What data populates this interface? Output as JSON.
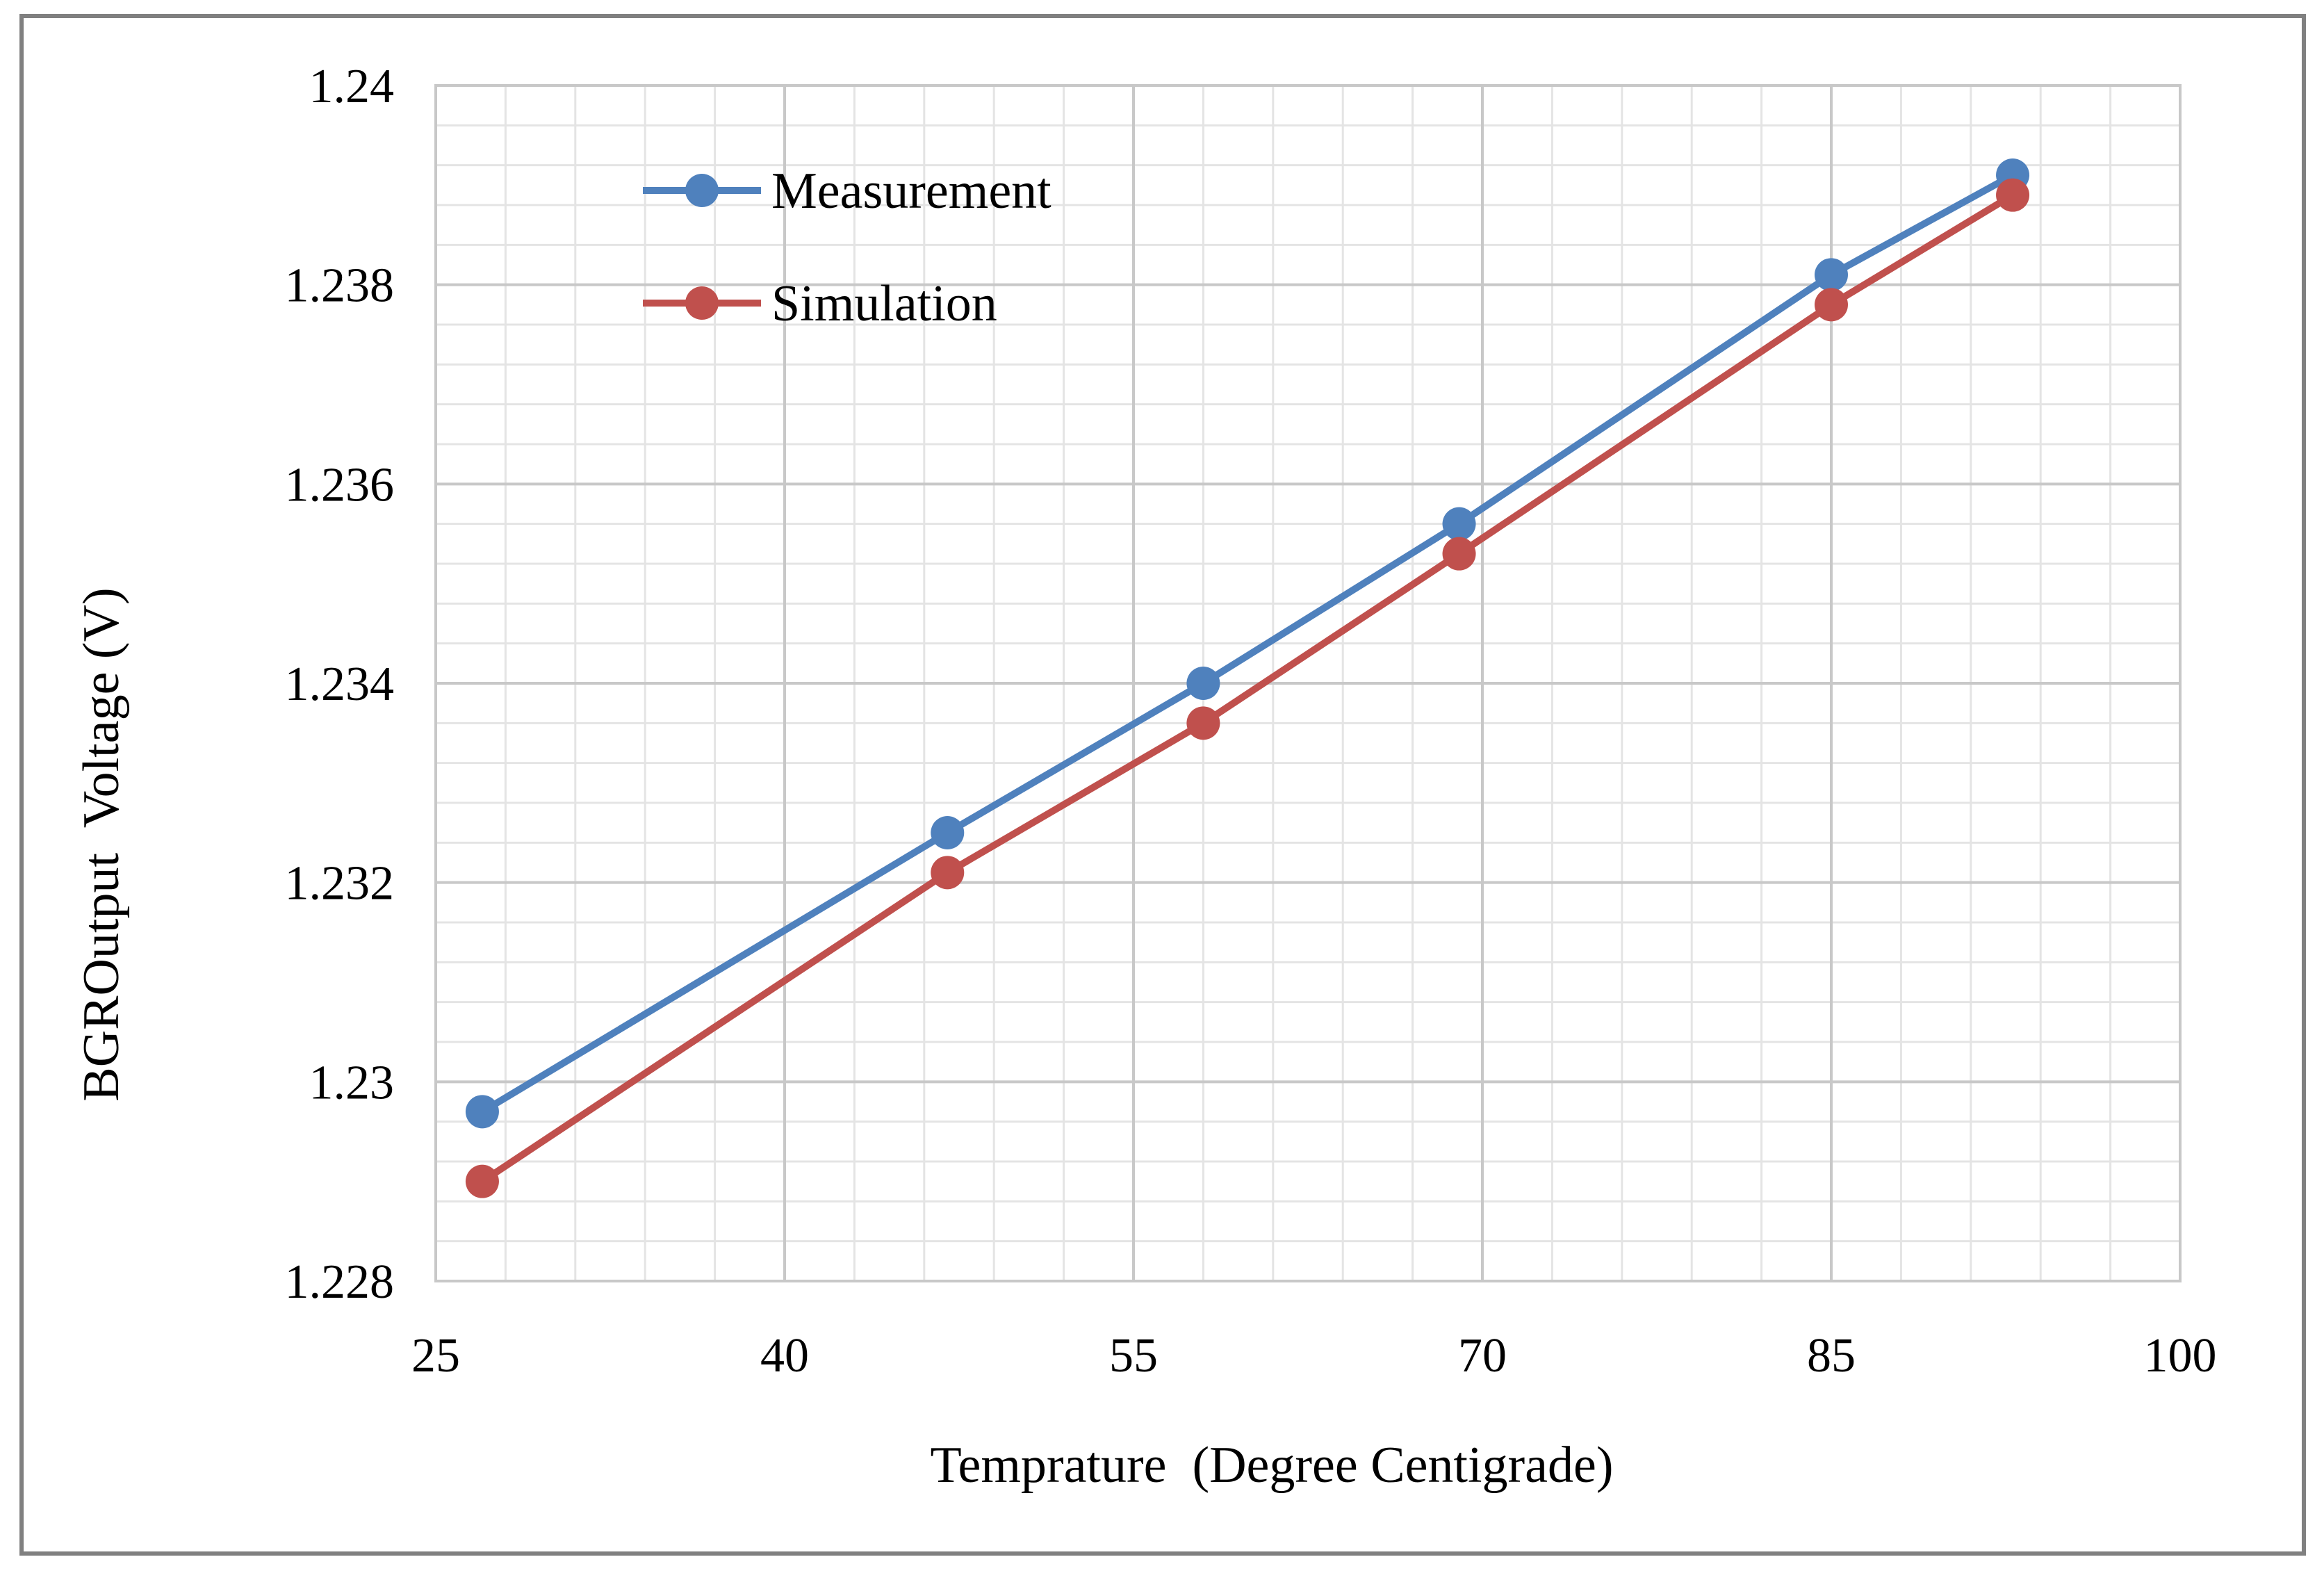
{
  "chart_data": {
    "type": "line",
    "xlabel": "Temprature  (Degree Centigrade)",
    "ylabel": "BGROutput  Voltage (V)",
    "xlim": [
      25,
      100
    ],
    "ylim": [
      1.228,
      1.24
    ],
    "x_ticks": [
      25,
      40,
      55,
      70,
      85,
      100
    ],
    "x_tick_labels": [
      "25",
      "40",
      "55",
      "70",
      "85",
      "100"
    ],
    "y_ticks": [
      1.228,
      1.23,
      1.232,
      1.234,
      1.236,
      1.238,
      1.24
    ],
    "y_tick_labels": [
      "1.228",
      "1.23",
      "1.232",
      "1.234",
      "1.236",
      "1.238",
      "1.24"
    ],
    "grid": true,
    "minor_grid": true,
    "legend_position": "top-left",
    "series": [
      {
        "name": "Measurement",
        "color": "#4F81BD",
        "points": [
          {
            "x": 27,
            "y": 1.2297
          },
          {
            "x": 47,
            "y": 1.2325
          },
          {
            "x": 58,
            "y": 1.234
          },
          {
            "x": 69,
            "y": 1.2356
          },
          {
            "x": 85,
            "y": 1.2381
          },
          {
            "x": 92.8,
            "y": 1.2391
          }
        ]
      },
      {
        "name": "Simulation",
        "color": "#C0504D",
        "points": [
          {
            "x": 27,
            "y": 1.229
          },
          {
            "x": 47,
            "y": 1.2321
          },
          {
            "x": 58,
            "y": 1.2336
          },
          {
            "x": 69,
            "y": 1.2353
          },
          {
            "x": 85,
            "y": 1.2378
          },
          {
            "x": 92.8,
            "y": 1.2389
          }
        ]
      }
    ]
  }
}
